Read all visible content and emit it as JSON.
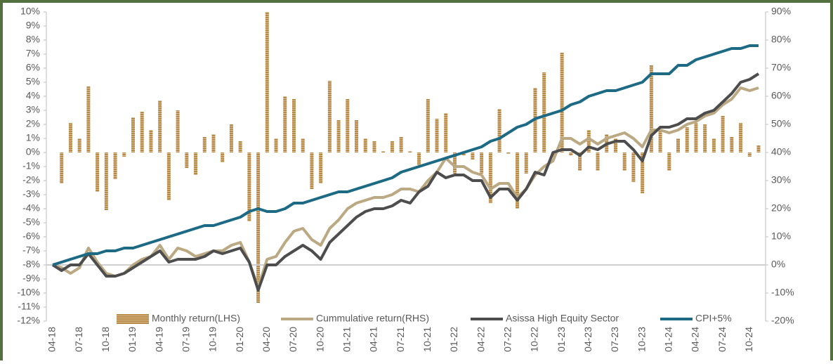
{
  "chart_data": {
    "type": "combo",
    "categories": [
      "04-18",
      null,
      null,
      "07-18",
      null,
      null,
      "10-18",
      null,
      null,
      "01-19",
      null,
      null,
      "04-19",
      null,
      null,
      "07-19",
      null,
      null,
      "10-19",
      null,
      null,
      "01-20",
      null,
      null,
      "04-20",
      null,
      null,
      "07-20",
      null,
      null,
      "10-20",
      null,
      null,
      "01-21",
      null,
      null,
      "04-21",
      null,
      null,
      "07-21",
      null,
      null,
      "10-21",
      null,
      null,
      "01-22",
      null,
      null,
      "04-22",
      null,
      null,
      "07-22",
      null,
      null,
      "10-22",
      null,
      null,
      "01-23",
      null,
      null,
      "04-23",
      null,
      null,
      "07-23",
      null,
      null,
      "10-23",
      null,
      null,
      "01-24",
      null,
      null,
      "04-24",
      null,
      null,
      "07-24",
      null,
      null,
      "10-24",
      null
    ],
    "series": [
      {
        "name": "Monthly return(LHS)",
        "type": "bar",
        "axis": "y",
        "color": "#b88a45",
        "values": [
          null,
          -2.2,
          2.1,
          1.0,
          4.7,
          -2.8,
          -4.1,
          -1.9,
          -0.3,
          2.5,
          2.9,
          1.6,
          3.7,
          -3.4,
          3.0,
          -1.1,
          -1.6,
          1.1,
          1.3,
          -0.7,
          2.0,
          0.8,
          -4.9,
          -10.7,
          10.0,
          1.0,
          4.0,
          3.8,
          1.0,
          -2.6,
          -2.2,
          5.1,
          2.3,
          3.8,
          2.3,
          1.0,
          0.8,
          0.1,
          0.8,
          1.1,
          0.1,
          -0.9,
          3.8,
          2.4,
          2.8,
          -1.5,
          -0.2,
          -0.5,
          -1.5,
          -3.6,
          3.1,
          -0.1,
          -4.0,
          -1.5,
          4.6,
          5.7,
          -0.3,
          7.1,
          -0.2,
          -1.3,
          1.6,
          -1.3,
          1.3,
          1.0,
          -1.3,
          -2.1,
          -2.9,
          6.2,
          1.6,
          -1.3,
          1.0,
          1.8,
          2.1,
          2.0,
          1.0,
          2.6,
          1.1,
          2.1,
          -0.3,
          0.5
        ]
      },
      {
        "name": "Cummulative return(RHS)",
        "type": "line",
        "axis": "y2",
        "color": "#bba983",
        "values": [
          0,
          -1,
          -3,
          -1,
          6,
          1,
          -3,
          -4,
          -3,
          0,
          2,
          3,
          7,
          2,
          6,
          5,
          3,
          4,
          5,
          5,
          7,
          8,
          1,
          -8,
          2,
          3,
          8,
          12,
          13,
          9,
          7,
          13,
          16,
          20,
          22,
          23,
          24,
          24,
          25,
          27,
          27,
          26,
          30,
          33,
          38,
          35,
          35,
          33,
          32,
          27,
          29,
          29,
          24,
          27,
          32,
          35,
          37,
          45,
          45,
          43,
          45,
          43,
          45,
          46,
          47,
          45,
          42,
          48,
          48,
          47,
          48,
          50,
          51,
          53,
          54,
          57,
          59,
          63,
          62,
          63
        ]
      },
      {
        "name": "Asissa High Equity Sector",
        "type": "line",
        "axis": "y2",
        "color": "#4d4d4d",
        "values": [
          0,
          -2,
          0,
          0,
          4,
          0,
          -4,
          -4,
          -3,
          -1,
          1,
          3,
          5,
          1,
          2,
          2,
          2,
          3,
          5,
          4,
          5,
          6,
          1,
          -9,
          0,
          0,
          3,
          5,
          7,
          5,
          2,
          8,
          11,
          14,
          17,
          19,
          20,
          20,
          21,
          23,
          22,
          26,
          28,
          33,
          31,
          32,
          32,
          30,
          30,
          24,
          27,
          27,
          23,
          27,
          33,
          32,
          40,
          41,
          41,
          39,
          42,
          41,
          43,
          44,
          44,
          41,
          37,
          46,
          49,
          49,
          50,
          52,
          52,
          54,
          55,
          58,
          61,
          65,
          66,
          68
        ]
      },
      {
        "name": "CPI+5%",
        "type": "line",
        "axis": "y2",
        "color": "#1d6a85",
        "values": [
          0,
          1,
          2,
          3,
          4,
          4,
          5,
          5,
          6,
          6,
          7,
          8,
          9,
          10,
          11,
          12,
          13,
          14,
          14,
          15,
          16,
          17,
          19,
          20,
          19,
          19,
          20,
          22,
          22,
          23,
          24,
          25,
          26,
          26,
          27,
          28,
          29,
          30,
          31,
          33,
          34,
          35,
          36,
          37,
          38,
          39,
          40,
          41,
          42,
          44,
          45,
          47,
          49,
          50,
          52,
          53,
          54,
          55,
          57,
          58,
          60,
          61,
          62,
          62,
          63,
          64,
          65,
          68,
          68,
          68,
          71,
          71,
          73,
          74,
          75,
          76,
          77,
          77,
          78,
          78
        ]
      }
    ],
    "ylim": [
      -12,
      10
    ],
    "yticks": [
      {
        "value": -12,
        "label": "-12%"
      },
      {
        "value": -11,
        "label": "-11%"
      },
      {
        "value": -10,
        "label": "-10%"
      },
      {
        "value": -9,
        "label": "-9%"
      },
      {
        "value": -8,
        "label": "-8%"
      },
      {
        "value": -7,
        "label": "-7%"
      },
      {
        "value": -6,
        "label": "-6%"
      },
      {
        "value": -5,
        "label": "-5%"
      },
      {
        "value": -4,
        "label": "-4%"
      },
      {
        "value": -3,
        "label": "-3%"
      },
      {
        "value": -2,
        "label": "-2%"
      },
      {
        "value": -1,
        "label": "-1%"
      },
      {
        "value": 0,
        "label": "0%"
      },
      {
        "value": 1,
        "label": "1%"
      },
      {
        "value": 2,
        "label": "2%"
      },
      {
        "value": 3,
        "label": "3%"
      },
      {
        "value": 4,
        "label": "4%"
      },
      {
        "value": 5,
        "label": "5%"
      },
      {
        "value": 6,
        "label": "6%"
      },
      {
        "value": 7,
        "label": "7%"
      },
      {
        "value": 8,
        "label": "8%"
      },
      {
        "value": 9,
        "label": "9%"
      },
      {
        "value": 10,
        "label": "10%"
      }
    ],
    "y2lim": [
      -20,
      90
    ],
    "y2ticks": [
      {
        "value": -20,
        "label": "-20%"
      },
      {
        "value": -10,
        "label": "-10%"
      },
      {
        "value": 0,
        "label": "0%"
      },
      {
        "value": 10,
        "label": "10%"
      },
      {
        "value": 20,
        "label": "20%"
      },
      {
        "value": 30,
        "label": "30%"
      },
      {
        "value": 40,
        "label": "40%"
      },
      {
        "value": 50,
        "label": "50%"
      },
      {
        "value": 60,
        "label": "60%"
      },
      {
        "value": 70,
        "label": "70%"
      },
      {
        "value": 80,
        "label": "80%"
      },
      {
        "value": 90,
        "label": "90%"
      }
    ],
    "legend": "bottom",
    "frame_color": "#55703f"
  }
}
